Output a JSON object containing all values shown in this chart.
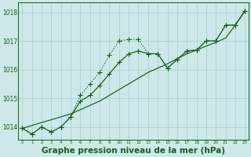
{
  "bg_color": "#cce8e8",
  "grid_color": "#aad4d4",
  "line_color": "#1a5c1a",
  "title": "Graphe pression niveau de la mer (hPa)",
  "title_fontsize": 7.5,
  "ylim": [
    1013.55,
    1018.35
  ],
  "xlim": [
    -0.4,
    23.4
  ],
  "yticks": [
    1014,
    1015,
    1016,
    1017,
    1018
  ],
  "x": [
    0,
    1,
    2,
    3,
    4,
    5,
    6,
    7,
    8,
    9,
    10,
    11,
    12,
    13,
    14,
    15,
    16,
    17,
    18,
    19,
    20,
    21,
    22,
    23
  ],
  "curve_peaked": [
    1013.95,
    1013.75,
    1014.0,
    1013.82,
    1014.0,
    1014.35,
    1015.1,
    1015.5,
    1015.9,
    1016.5,
    1017.0,
    1017.05,
    1017.05,
    1016.55,
    1016.55,
    1016.05,
    1016.35,
    1016.65,
    1016.68,
    1017.0,
    1017.0,
    1017.55,
    1017.55,
    1018.05
  ],
  "curve_mid": [
    1013.95,
    1013.75,
    1014.0,
    1013.82,
    1014.0,
    1014.35,
    1014.9,
    1015.1,
    1015.45,
    1015.85,
    1016.25,
    1016.55,
    1016.65,
    1016.55,
    1016.55,
    1016.05,
    1016.35,
    1016.65,
    1016.68,
    1017.0,
    1017.0,
    1017.55,
    1017.55,
    1018.05
  ],
  "curve_linear": [
    1013.95,
    1014.05,
    1014.15,
    1014.25,
    1014.35,
    1014.45,
    1014.6,
    1014.75,
    1014.9,
    1015.1,
    1015.3,
    1015.5,
    1015.7,
    1015.9,
    1016.05,
    1016.2,
    1016.38,
    1016.55,
    1016.68,
    1016.82,
    1016.95,
    1017.1,
    1017.55,
    1018.05
  ]
}
